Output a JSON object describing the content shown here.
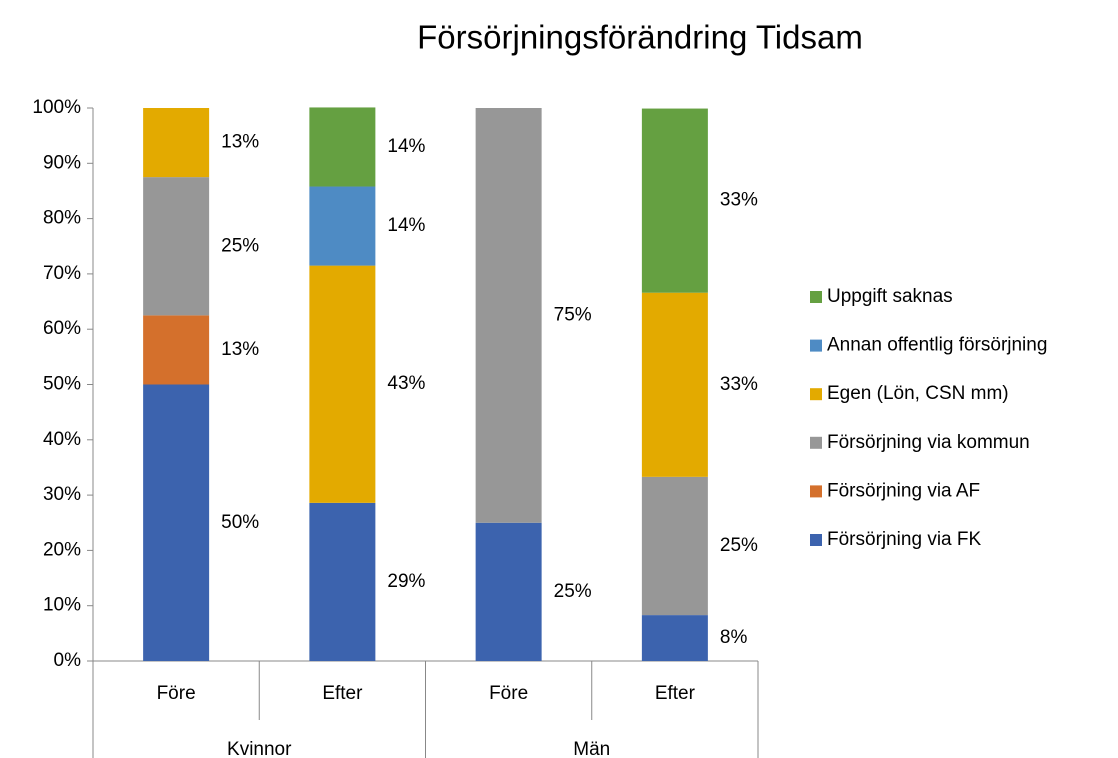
{
  "chart_data": {
    "type": "stacked_bar",
    "title": "Försörjningsförändring Tidsam",
    "categories": [
      "Före",
      "Efter",
      "Före",
      "Efter"
    ],
    "groups": [
      {
        "label": "Kvinnor",
        "count": 2
      },
      {
        "label": "Män",
        "count": 2
      }
    ],
    "ylim": [
      0,
      100
    ],
    "yticks": [
      {
        "value": 0,
        "label": "0%"
      },
      {
        "value": 10,
        "label": "10%"
      },
      {
        "value": 20,
        "label": "20%"
      },
      {
        "value": 30,
        "label": "30%"
      },
      {
        "value": 40,
        "label": "40%"
      },
      {
        "value": 50,
        "label": "50%"
      },
      {
        "value": 60,
        "label": "60%"
      },
      {
        "value": 70,
        "label": "70%"
      },
      {
        "value": 80,
        "label": "80%"
      },
      {
        "value": 90,
        "label": "90%"
      },
      {
        "value": 100,
        "label": "100%"
      }
    ],
    "legend": "right",
    "series": [
      {
        "name": "Försörjning via FK",
        "color": "#3c63ae",
        "values": [
          50,
          28.6,
          25,
          8.3
        ],
        "value_labels": [
          "50%",
          "29%",
          "25%",
          "8%"
        ]
      },
      {
        "name": "Försörjning via AF",
        "color": "#d4702c",
        "values": [
          12.5,
          0,
          0,
          0
        ],
        "value_labels": [
          "13%",
          null,
          null,
          null
        ]
      },
      {
        "name": "Försörjning via kommun",
        "color": "#979797",
        "values": [
          25,
          0,
          75,
          25
        ],
        "value_labels": [
          "25%",
          null,
          "75%",
          "25%"
        ]
      },
      {
        "name": "Egen (Lön, CSN mm)",
        "color": "#e3aa00",
        "values": [
          12.5,
          42.9,
          0,
          33.3
        ],
        "value_labels": [
          "13%",
          "43%",
          null,
          "33%"
        ]
      },
      {
        "name": "Annan offentlig försörjning",
        "color": "#4e8bc4",
        "values": [
          0,
          14.3,
          0,
          0
        ],
        "value_labels": [
          null,
          "14%",
          null,
          null
        ]
      },
      {
        "name": "Uppgift saknas",
        "color": "#65a041",
        "values": [
          0,
          14.3,
          0,
          33.3
        ],
        "value_labels": [
          null,
          "14%",
          null,
          "33%"
        ]
      }
    ]
  }
}
